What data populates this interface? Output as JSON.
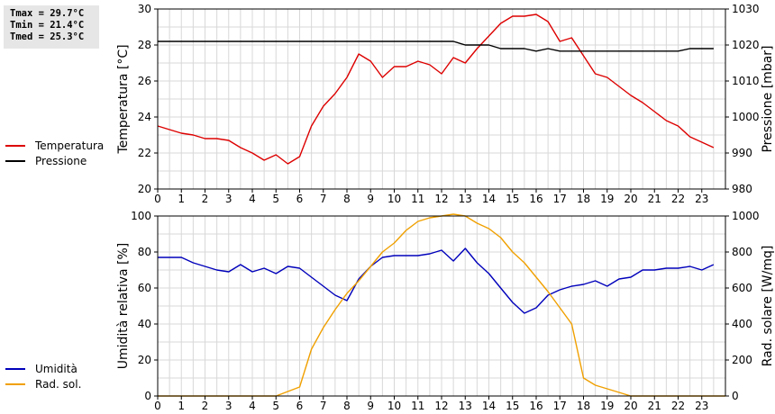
{
  "stats": {
    "tmax": "Tmax = 29.7°C",
    "tmin": "Tmin = 21.4°C",
    "tmed": "Tmed = 25.3°C"
  },
  "legend_top": [
    {
      "label": "Temperatura",
      "color": "#dd0000"
    },
    {
      "label": "Pressione",
      "color": "#000000"
    }
  ],
  "legend_bottom": [
    {
      "label": "Umidità",
      "color": "#0000bb"
    },
    {
      "label": "Rad. sol.",
      "color": "#f0a000"
    }
  ],
  "chart_data": [
    {
      "type": "line",
      "xlabel": "",
      "xlim": [
        0,
        24
      ],
      "xticks": [
        0,
        1,
        2,
        3,
        4,
        5,
        6,
        7,
        8,
        9,
        10,
        11,
        12,
        13,
        14,
        15,
        16,
        17,
        18,
        19,
        20,
        21,
        22,
        23
      ],
      "grid": true,
      "axes": {
        "left": {
          "label": "Temperatura [°C]",
          "lim": [
            20,
            30
          ],
          "ticks": [
            20,
            22,
            24,
            26,
            28,
            30
          ]
        },
        "right": {
          "label": "Pressione [mbar]",
          "lim": [
            980,
            1030
          ],
          "ticks": [
            980,
            990,
            1000,
            1010,
            1020,
            1030
          ]
        }
      },
      "series": [
        {
          "name": "Temperatura",
          "axis": "left",
          "color": "#dd0000",
          "x": [
            0,
            0.5,
            1,
            1.5,
            2,
            2.5,
            3,
            3.5,
            4,
            4.5,
            5,
            5.5,
            6,
            6.5,
            7,
            7.5,
            8,
            8.5,
            9,
            9.5,
            10,
            10.5,
            11,
            11.5,
            12,
            12.5,
            13,
            13.5,
            14,
            14.5,
            15,
            15.5,
            16,
            16.5,
            17,
            17.5,
            18,
            18.5,
            19,
            19.5,
            20,
            20.5,
            21,
            21.5,
            22,
            22.5,
            23,
            23.5
          ],
          "y": [
            23.5,
            23.3,
            23.1,
            23.0,
            22.8,
            22.8,
            22.7,
            22.3,
            22.0,
            21.6,
            21.9,
            21.4,
            21.8,
            23.5,
            24.6,
            25.3,
            26.2,
            27.5,
            27.1,
            26.2,
            26.8,
            26.8,
            27.1,
            26.9,
            26.4,
            27.3,
            27.0,
            27.8,
            28.5,
            29.2,
            29.6,
            29.6,
            29.7,
            29.3,
            28.2,
            28.4,
            27.4,
            26.4,
            26.2,
            25.7,
            25.2,
            24.8,
            24.3,
            23.8,
            23.5,
            22.9,
            22.6,
            22.3
          ]
        },
        {
          "name": "Pressione",
          "axis": "right",
          "color": "#000000",
          "x": [
            0,
            12.5,
            13,
            14,
            14.5,
            15.5,
            16,
            16.5,
            17,
            18,
            19,
            20,
            21,
            22,
            22.5,
            23,
            23.5
          ],
          "y": [
            1021,
            1021,
            1020,
            1020,
            1019,
            1019,
            1018.3,
            1019,
            1018.3,
            1018.3,
            1018.3,
            1018.3,
            1018.3,
            1018.3,
            1019,
            1019,
            1019
          ]
        }
      ]
    },
    {
      "type": "line",
      "xlabel": "",
      "xlim": [
        0,
        24
      ],
      "xticks": [
        0,
        1,
        2,
        3,
        4,
        5,
        6,
        7,
        8,
        9,
        10,
        11,
        12,
        13,
        14,
        15,
        16,
        17,
        18,
        19,
        20,
        21,
        22,
        23
      ],
      "grid": true,
      "axes": {
        "left": {
          "label": "Umidità relativa [%]",
          "lim": [
            0,
            100
          ],
          "ticks": [
            0,
            20,
            40,
            60,
            80,
            100
          ]
        },
        "right": {
          "label": "Rad. solare [W/mq]",
          "lim": [
            0,
            1000
          ],
          "ticks": [
            0,
            200,
            400,
            600,
            800,
            1000
          ]
        }
      },
      "series": [
        {
          "name": "Umidità",
          "axis": "left",
          "color": "#0000bb",
          "x": [
            0,
            0.5,
            1,
            1.5,
            2,
            2.5,
            3,
            3.5,
            4,
            4.5,
            5,
            5.5,
            6,
            6.5,
            7,
            7.5,
            8,
            8.5,
            9,
            9.5,
            10,
            10.5,
            11,
            11.5,
            12,
            12.5,
            13,
            13.5,
            14,
            14.5,
            15,
            15.5,
            16,
            16.5,
            17,
            17.5,
            18,
            18.5,
            19,
            19.5,
            20,
            20.5,
            21,
            21.5,
            22,
            22.5,
            23,
            23.5
          ],
          "y": [
            77,
            77,
            77,
            74,
            72,
            70,
            69,
            73,
            69,
            71,
            68,
            72,
            71,
            66,
            61,
            56,
            53,
            65,
            72,
            77,
            78,
            78,
            78,
            79,
            81,
            75,
            82,
            74,
            68,
            60,
            52,
            46,
            49,
            56,
            59,
            61,
            62,
            64,
            61,
            65,
            66,
            70,
            70,
            71,
            71,
            72,
            70,
            73
          ]
        },
        {
          "name": "Rad. sol.",
          "axis": "right",
          "color": "#f0a000",
          "x": [
            0,
            5,
            6,
            6.5,
            7,
            7.5,
            8,
            8.5,
            9,
            9.5,
            10,
            10.5,
            11,
            11.5,
            12,
            12.5,
            13,
            13.5,
            14,
            14.5,
            15,
            15.5,
            16,
            16.5,
            17,
            17.5,
            18,
            18.5,
            19,
            19.5,
            20,
            24
          ],
          "y": [
            0,
            0,
            50,
            260,
            380,
            480,
            570,
            640,
            720,
            800,
            850,
            920,
            970,
            990,
            1000,
            1010,
            1000,
            960,
            930,
            880,
            800,
            740,
            660,
            580,
            490,
            400,
            100,
            60,
            40,
            20,
            0,
            0
          ]
        }
      ]
    }
  ]
}
